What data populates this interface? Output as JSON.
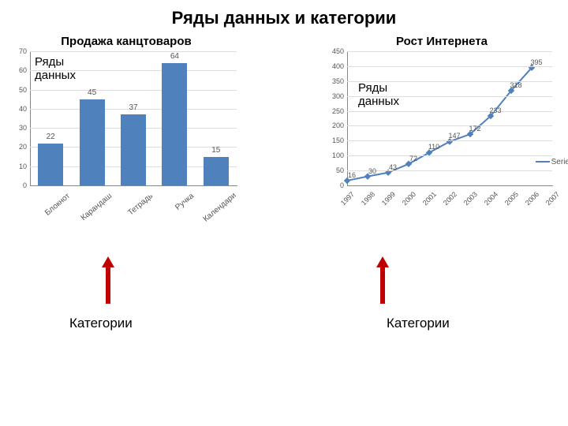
{
  "title": "Ряды данных и категории",
  "series_overlay_label": "Ряды\nданных",
  "categories_label": "Категории",
  "legend_stub": "Serie",
  "bar_chart": {
    "title": "Продажа канцтоваров",
    "type": "bar",
    "categories": [
      "Блокнот",
      "Карандаш",
      "Тетрадь",
      "Ручка",
      "Календари"
    ],
    "values": [
      22,
      45,
      37,
      64,
      15
    ],
    "bar_color": "#4f81bd",
    "ylim": [
      0,
      70
    ],
    "ytick_step": 10,
    "label_fontsize": 10,
    "grid_color": "#dddddd",
    "background_color": "#ffffff"
  },
  "line_chart": {
    "title": "Рост Интернета",
    "type": "line",
    "categories": [
      "1997",
      "1998",
      "1999",
      "2000",
      "2001",
      "2002",
      "2003",
      "2004",
      "2005",
      "2006",
      "2007"
    ],
    "values": [
      16,
      30,
      43,
      72,
      110,
      147,
      172,
      233,
      318,
      395,
      null
    ],
    "line_color": "#4f81bd",
    "marker_color": "#4f81bd",
    "ylim": [
      0,
      450
    ],
    "ytick_step": 50,
    "grid_color": "#dddddd",
    "background_color": "#ffffff"
  },
  "arrow_color": "#c00000"
}
